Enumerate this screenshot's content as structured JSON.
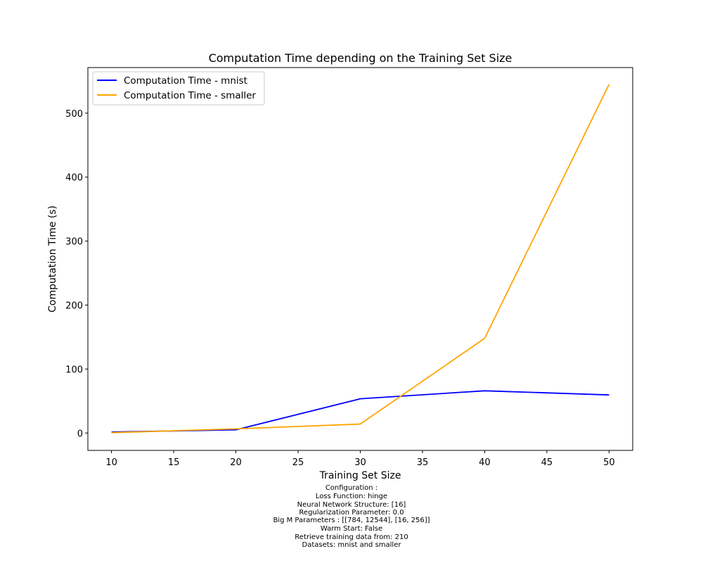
{
  "chart_data": {
    "type": "line",
    "title": "Computation Time depending on the Training Set Size",
    "xlabel": "Training Set Size",
    "ylabel": "Computation Time (s)",
    "xlim": [
      8.1,
      51.9
    ],
    "ylim": [
      -27.2,
      571.3
    ],
    "xticks": [
      10,
      15,
      20,
      25,
      30,
      35,
      40,
      45,
      50
    ],
    "yticks": [
      0,
      100,
      200,
      300,
      400,
      500
    ],
    "x": [
      10,
      20,
      30,
      40,
      50
    ],
    "series": [
      {
        "name": "Computation Time - mnist",
        "color": "#0000ff",
        "values": [
          1.5,
          5,
          53.5,
          66,
          59.5
        ]
      },
      {
        "name": "Computation Time - smaller",
        "color": "#ffa500",
        "values": [
          0.5,
          6.5,
          14,
          148,
          545
        ]
      }
    ],
    "legend": "top-left",
    "grid": false,
    "footnote": [
      "Configuration :",
      "Loss Function: hinge",
      "Neural Network Structure: [16]",
      "Regularization Parameter: 0.0",
      "Big M Parameters : [[784, 12544], [16, 256]]",
      "Warm Start: False",
      "Retrieve training data from: 210",
      "Datasets: mnist and smaller"
    ]
  }
}
